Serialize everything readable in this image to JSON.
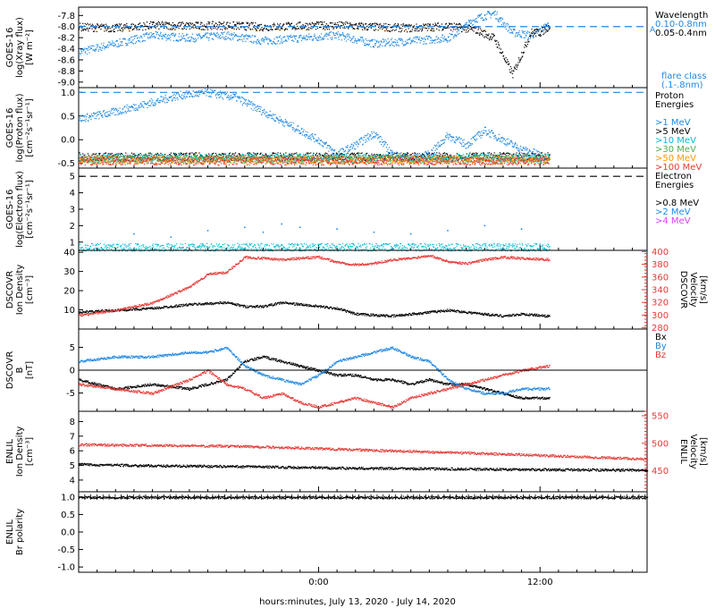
{
  "xaxis": {
    "label": "hours:minutes, July 13, 2020 - July 14, 2020",
    "tick_labels": [
      "0:00",
      "12:00"
    ],
    "tick_hours": [
      24,
      36
    ],
    "range_hours": [
      11,
      41.8
    ]
  },
  "colors": {
    "blue": "#1e88e5",
    "black": "#000000",
    "red": "#e53935",
    "cyan": "#00bcd4",
    "green": "#4caf50",
    "orange": "#ff9800",
    "magenta": "#e040fb",
    "dash": "#1e88e5"
  },
  "panels": [
    {
      "id": "xray",
      "ylabel_lines": [
        "GOES-16",
        "log(Xray flux)",
        "[W m⁻²]"
      ],
      "ticks": [
        -9.0,
        -8.8,
        -8.6,
        -8.4,
        -8.2,
        -8.0,
        -7.8
      ],
      "tick_labels": [
        "-9.0",
        "-8.8",
        "-8.6",
        "-8.4",
        "-8.2",
        "-8.0",
        "-7.8"
      ],
      "yrange": [
        -9.1,
        -7.65
      ],
      "legend": [
        {
          "text": "Wavelength",
          "color": "#000000"
        },
        {
          "text": "0.10-0.8nm",
          "color": "#1e88e5"
        },
        {
          "text": "0.05-0.4nm",
          "color": "#000000"
        }
      ],
      "extra_legend": [
        {
          "text": "flare class",
          "color": "#1e88e5"
        },
        {
          "text": "(.1-.8nm)",
          "color": "#1e88e5"
        }
      ],
      "marker": "A"
    },
    {
      "id": "proton",
      "ylabel_lines": [
        "GOES-16",
        "log(Proton flux)",
        "[cm⁻²s⁻¹sr⁻¹]"
      ],
      "ticks": [
        -0.5,
        0.0,
        0.5,
        1.0
      ],
      "tick_labels": [
        "-0.5",
        "0.0",
        "0.5",
        "1.0"
      ],
      "yrange": [
        -0.6,
        1.1
      ],
      "legend": [
        {
          "text": "Proton",
          "color": "#000000"
        },
        {
          "text": "Energies",
          "color": "#000000"
        },
        {
          "text": "",
          "color": "#000000"
        },
        {
          "text": ">1 MeV",
          "color": "#1e88e5"
        },
        {
          "text": ">5 MeV",
          "color": "#000000"
        },
        {
          "text": ">10 MeV",
          "color": "#00bcd4"
        },
        {
          "text": ">30 MeV",
          "color": "#4caf50"
        },
        {
          "text": ">50 MeV",
          "color": "#ff9800"
        },
        {
          "text": ">100 MeV",
          "color": "#e53935"
        }
      ]
    },
    {
      "id": "electron",
      "ylabel_lines": [
        "GOES-16",
        "log(Electron flux)",
        "[cm⁻²s⁻¹sr⁻¹]"
      ],
      "ticks": [
        1,
        2,
        3,
        4,
        5
      ],
      "tick_labels": [
        "1",
        "2",
        "3",
        "4",
        "5"
      ],
      "yrange": [
        0.5,
        5.5
      ],
      "legend": [
        {
          "text": "Electron",
          "color": "#000000"
        },
        {
          "text": "Energies",
          "color": "#000000"
        },
        {
          "text": "",
          "color": "#000000"
        },
        {
          "text": ">0.8 MeV",
          "color": "#000000"
        },
        {
          "text": ">2 MeV",
          "color": "#1e88e5"
        },
        {
          "text": ">4 MeV",
          "color": "#e040fb"
        }
      ]
    },
    {
      "id": "dscovr_density",
      "ylabel_lines": [
        "DSCOVR",
        "Ion Density",
        "[cm⁻³]"
      ],
      "ticks": [
        10,
        20,
        30,
        40
      ],
      "tick_labels": [
        "10",
        "20",
        "30",
        "40"
      ],
      "yrange": [
        0,
        41
      ],
      "right_label_lines": [
        "DSCOVR",
        "Velocity",
        "[km/s]"
      ],
      "right_ticks": [
        280,
        300,
        320,
        340,
        360,
        380,
        400
      ],
      "right_tick_labels": [
        "280",
        "300",
        "320",
        "340",
        "360",
        "380",
        "400"
      ],
      "right_range": [
        278,
        402
      ]
    },
    {
      "id": "dscovr_b",
      "ylabel_lines": [
        "DSCOVR",
        "B",
        "[nT]"
      ],
      "ticks": [
        -5,
        0,
        5
      ],
      "tick_labels": [
        "-5",
        "0",
        "5"
      ],
      "yrange": [
        -9,
        9
      ],
      "legend": [
        {
          "text": "Bx",
          "color": "#000000"
        },
        {
          "text": "By",
          "color": "#1e88e5"
        },
        {
          "text": "Bz",
          "color": "#e53935"
        }
      ]
    },
    {
      "id": "enlil_density",
      "ylabel_lines": [
        "ENLIL",
        "Ion Density",
        "[cm⁻³]"
      ],
      "ticks": [
        4,
        5,
        6,
        7,
        8
      ],
      "tick_labels": [
        "4",
        "5",
        "6",
        "7",
        "8"
      ],
      "yrange": [
        3.2,
        8.7
      ],
      "right_label_lines": [
        "ENLIL",
        "Velocity",
        "[km/s]"
      ],
      "right_ticks": [
        450,
        500,
        550
      ],
      "right_tick_labels": [
        "450",
        "500",
        "550"
      ],
      "right_range": [
        412,
        558
      ]
    },
    {
      "id": "enlil_polarity",
      "ylabel_lines": [
        "ENLIL",
        "Br polarity"
      ],
      "ticks": [
        -1.0,
        -0.5,
        0.0,
        0.5,
        1.0
      ],
      "tick_labels": [
        "-1.0",
        "-0.5",
        "0.0",
        "0.5",
        "1.0"
      ],
      "yrange": [
        -1.15,
        1.15
      ]
    }
  ],
  "chart_data": [
    {
      "panel": "xray",
      "type": "scatter",
      "ylim": [
        -9.1,
        -7.65
      ],
      "series": [
        {
          "name": "0.10-0.8nm",
          "color": "#1e88e5",
          "x": [
            11,
            13,
            15,
            17,
            19,
            21,
            23,
            25,
            27,
            29,
            31,
            32.5,
            33.5,
            34.5,
            35.5,
            36,
            36.5
          ],
          "y": [
            -8.45,
            -8.3,
            -8.15,
            -8.2,
            -8.15,
            -8.25,
            -8.2,
            -8.15,
            -8.3,
            -8.25,
            -8.2,
            -7.85,
            -7.75,
            -8.1,
            -8.15,
            -8.05,
            -7.95
          ]
        },
        {
          "name": "0.05-0.4nm",
          "color": "#000000",
          "x": [
            11,
            13,
            15,
            17,
            19,
            21,
            23,
            25,
            27,
            29,
            31,
            32.5,
            33.5,
            34.5,
            35.5,
            36,
            36.5
          ],
          "y": [
            -8.0,
            -8.02,
            -7.97,
            -7.98,
            -7.97,
            -8.0,
            -7.98,
            -7.97,
            -8.0,
            -8.02,
            -7.98,
            -8.05,
            -8.2,
            -8.85,
            -8.1,
            -8.1,
            -7.98
          ]
        },
        {
          "name": "flare class",
          "color": "#1e88e5",
          "x": [
            11,
            41.8
          ],
          "y": [
            -8.0,
            -8.0
          ],
          "style": "dash"
        }
      ]
    },
    {
      "panel": "proton",
      "type": "scatter",
      "ylim": [
        -0.6,
        1.1
      ],
      "series": [
        {
          "name": ">1 MeV",
          "color": "#1e88e5",
          "x": [
            11,
            13,
            15,
            16.5,
            18,
            19.5,
            21,
            22.5,
            24,
            25,
            26,
            27,
            28,
            29,
            30,
            31,
            32,
            33,
            34,
            35,
            36
          ],
          "y": [
            0.45,
            0.6,
            0.8,
            0.95,
            1.0,
            0.9,
            0.6,
            0.3,
            0.0,
            -0.3,
            -0.1,
            0.15,
            -0.3,
            -0.4,
            -0.3,
            0.1,
            -0.1,
            0.2,
            0.0,
            -0.2,
            -0.3
          ]
        },
        {
          "name": ">5 MeV",
          "color": "#000000",
          "x": [
            11,
            36.5
          ],
          "y": [
            -0.35,
            -0.35
          ]
        },
        {
          "name": ">10 MeV",
          "color": "#00bcd4",
          "x": [
            11,
            36.5
          ],
          "y": [
            -0.38,
            -0.38
          ]
        },
        {
          "name": ">30 MeV",
          "color": "#4caf50",
          "x": [
            11,
            36.5
          ],
          "y": [
            -0.4,
            -0.4
          ]
        },
        {
          "name": ">50 MeV",
          "color": "#ff9800",
          "x": [
            11,
            36.5
          ],
          "y": [
            -0.42,
            -0.42
          ]
        },
        {
          "name": ">100 MeV",
          "color": "#e53935",
          "x": [
            11,
            36.5
          ],
          "y": [
            -0.44,
            -0.44
          ]
        },
        {
          "name": "threshold",
          "color": "#1e88e5",
          "x": [
            11,
            41.8
          ],
          "y": [
            1.0,
            1.0
          ],
          "style": "dash"
        }
      ]
    },
    {
      "panel": "electron",
      "type": "scatter",
      "ylim": [
        0.5,
        5.5
      ],
      "series": [
        {
          "name": ">0.8 MeV",
          "color": "#000000",
          "x": [
            11,
            41.8
          ],
          "y": [
            5.0,
            5.0
          ],
          "style": "dash"
        },
        {
          "name": ">2 MeV",
          "color": "#1e88e5",
          "x": [
            14,
            16,
            18,
            20,
            21,
            22,
            23,
            25,
            27,
            29,
            31,
            33,
            35
          ],
          "y": [
            1.5,
            1.3,
            1.7,
            1.9,
            1.6,
            2.1,
            1.9,
            1.8,
            1.6,
            1.5,
            1.7,
            2.0,
            1.8
          ]
        },
        {
          "name": "base",
          "color": "#00bcd4",
          "x": [
            11,
            36.5
          ],
          "y": [
            0.7,
            0.7
          ]
        }
      ]
    },
    {
      "panel": "dscovr_density",
      "type": "line",
      "ylim": [
        0,
        41
      ],
      "series": [
        {
          "name": "Ion Density",
          "color": "#000000",
          "x": [
            11,
            13,
            15,
            17,
            19,
            20,
            21,
            22,
            23,
            24,
            25,
            26,
            28,
            29,
            30,
            31,
            32,
            33,
            34,
            35,
            36.5
          ],
          "y": [
            9,
            10,
            11,
            13,
            14,
            12,
            12,
            14,
            13,
            12,
            11,
            8,
            7,
            8,
            9,
            10,
            9,
            8,
            7,
            8,
            7
          ]
        }
      ]
    },
    {
      "panel": "dscovr_velocity",
      "type": "line",
      "ylim": [
        278,
        402
      ],
      "series": [
        {
          "name": "Velocity",
          "color": "#e53935",
          "x": [
            11,
            13,
            15,
            17,
            18,
            19,
            20,
            21,
            22,
            23,
            24,
            25,
            26,
            27,
            28,
            29,
            30,
            31,
            32,
            33,
            34,
            35,
            36.5
          ],
          "y": [
            300,
            308,
            320,
            345,
            365,
            368,
            392,
            390,
            388,
            390,
            392,
            384,
            380,
            382,
            388,
            390,
            395,
            385,
            382,
            388,
            392,
            390,
            388
          ]
        }
      ]
    },
    {
      "panel": "dscovr_b",
      "type": "line",
      "ylim": [
        -9,
        9
      ],
      "series": [
        {
          "name": "Bx",
          "color": "#000000",
          "x": [
            11,
            13,
            15,
            17,
            18,
            19,
            20,
            21,
            22,
            23,
            24,
            25,
            26,
            27,
            28,
            29,
            30,
            31,
            32,
            33,
            34,
            35,
            36.5
          ],
          "y": [
            -2,
            -4,
            -3,
            -4,
            -3,
            -2,
            2,
            3,
            2,
            1,
            0,
            -1,
            -1,
            -2,
            -2,
            -3,
            -2,
            -3,
            -3,
            -4,
            -5,
            -6,
            -6
          ]
        },
        {
          "name": "By",
          "color": "#1e88e5",
          "x": [
            11,
            13,
            15,
            17,
            18,
            19,
            20,
            21,
            22,
            23,
            24,
            25,
            26,
            27,
            28,
            29,
            30,
            31,
            32,
            33,
            34,
            35,
            36.5
          ],
          "y": [
            2,
            3,
            3,
            4,
            4,
            5,
            1,
            -1,
            -2,
            -3,
            -1,
            2,
            3,
            4,
            5,
            3,
            2,
            -2,
            -4,
            -5,
            -5,
            -4,
            -4
          ]
        },
        {
          "name": "Bz",
          "color": "#e53935",
          "x": [
            11,
            13,
            15,
            17,
            18,
            19,
            20,
            21,
            22,
            23,
            24,
            25,
            26,
            27,
            28,
            29,
            30,
            31,
            32,
            33,
            34,
            35,
            36.5
          ],
          "y": [
            -3,
            -4,
            -5,
            -2,
            0,
            -3,
            -4,
            -6,
            -5,
            -7,
            -8,
            -7,
            -6,
            -7,
            -8,
            -6,
            -5,
            -4,
            -3,
            -2,
            -1,
            0,
            1
          ]
        }
      ]
    },
    {
      "panel": "enlil_density",
      "type": "line",
      "ylim": [
        3.2,
        8.7
      ],
      "series": [
        {
          "name": "Ion Density",
          "color": "#000000",
          "x": [
            11,
            15,
            20,
            25,
            30,
            35,
            41.8
          ],
          "y": [
            5.1,
            5.0,
            4.95,
            4.85,
            4.8,
            4.75,
            4.7
          ]
        }
      ]
    },
    {
      "panel": "enlil_velocity",
      "type": "line",
      "ylim": [
        412,
        558
      ],
      "series": [
        {
          "name": "Velocity",
          "color": "#e53935",
          "x": [
            11,
            15,
            20,
            25,
            30,
            35,
            41.8
          ],
          "y": [
            498,
            497,
            495,
            490,
            485,
            480,
            472
          ]
        }
      ]
    },
    {
      "panel": "enlil_polarity",
      "type": "line",
      "ylim": [
        -1.15,
        1.15
      ],
      "series": [
        {
          "name": "Br polarity",
          "color": "#000000",
          "x": [
            11,
            41.8
          ],
          "y": [
            1.0,
            1.0
          ]
        }
      ]
    }
  ]
}
